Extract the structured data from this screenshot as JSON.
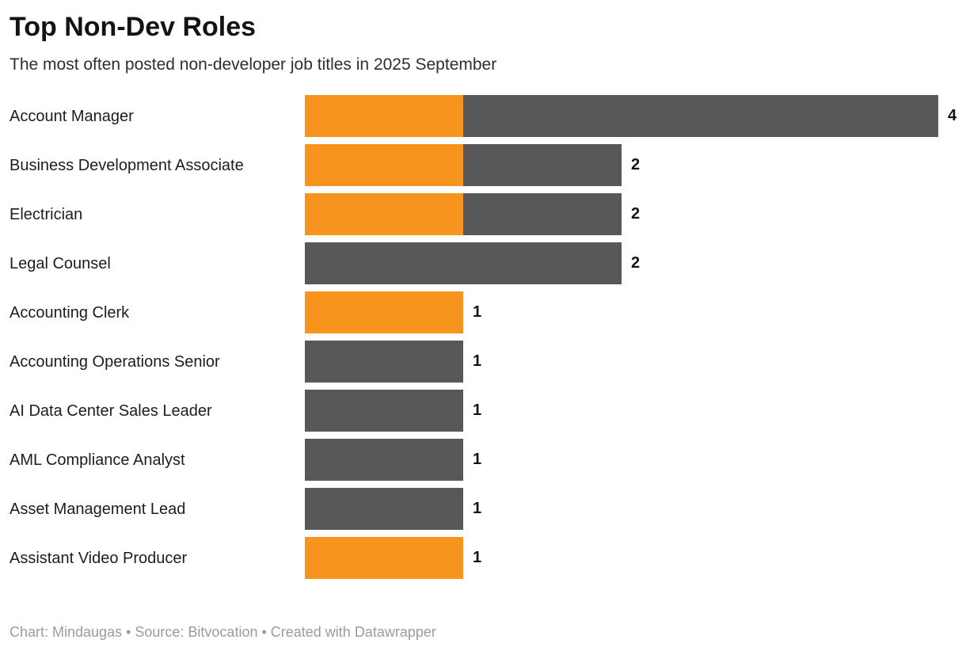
{
  "header": {
    "title": "Top Non-Dev Roles",
    "subtitle": "The most often posted non-developer job titles in 2025 September"
  },
  "footer": {
    "credit": "Chart: Mindaugas • Source: Bitvocation • Created with Datawrapper"
  },
  "colors": {
    "highlight_orange": "#f7941e",
    "base_gray": "#58585a",
    "title_text": "#131313",
    "subtitle_text": "#2e2e2e",
    "footer_text": "#9b9b9b"
  },
  "chart_data": {
    "type": "bar",
    "orientation": "horizontal",
    "title": "Top Non-Dev Roles",
    "subtitle": "The most often posted non-developer job titles in 2025 September",
    "xlabel": "",
    "ylabel": "",
    "xlim": [
      0,
      4
    ],
    "grid": false,
    "legend": false,
    "value_labels": true,
    "categories": [
      "Account Manager",
      "Business Development Associate",
      "Electrician",
      "Legal Counsel",
      "Accounting Clerk",
      "Accounting Operations Senior",
      "AI Data Center Sales Leader",
      "AML Compliance Analyst",
      "Asset Management Lead",
      "Assistant Video Producer"
    ],
    "values": [
      4,
      2,
      2,
      2,
      1,
      1,
      1,
      1,
      1,
      1
    ],
    "highlight_units": [
      1,
      1,
      1,
      0,
      1,
      0,
      0,
      0,
      0,
      1
    ],
    "series": [
      {
        "name": "highlighted-portion",
        "color": "#f7941e",
        "values": [
          1,
          1,
          1,
          0,
          1,
          0,
          0,
          0,
          0,
          1
        ]
      },
      {
        "name": "remaining-portion",
        "color": "#58585a",
        "values": [
          3,
          1,
          1,
          2,
          0,
          1,
          1,
          1,
          1,
          0
        ]
      }
    ]
  }
}
